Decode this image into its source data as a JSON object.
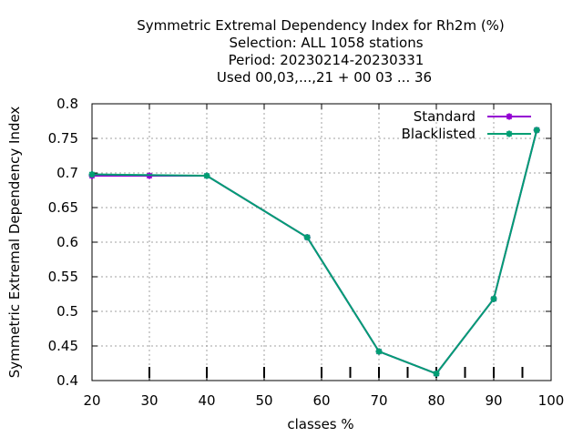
{
  "chart_data": {
    "type": "line",
    "title_lines": [
      "Symmetric Extremal Dependency Index  for Rh2m (%)",
      "Selection: ALL   1058 stations",
      "Period: 20230214-20230331",
      "Used  00,03,...,21  + 00 03 ... 36"
    ],
    "xlabel": "classes %",
    "ylabel": "Symmetric Extremal Dependency Index",
    "xlim": [
      20,
      100
    ],
    "ylim": [
      0.4,
      0.8
    ],
    "x_ticks": [
      20,
      30,
      40,
      50,
      60,
      70,
      80,
      90,
      100
    ],
    "y_ticks": [
      0.4,
      0.45,
      0.5,
      0.55,
      0.6,
      0.65,
      0.7,
      0.75,
      0.8
    ],
    "x_tick_labels": [
      "20",
      "30",
      "40",
      "50",
      "60",
      "70",
      "80",
      "90",
      "100"
    ],
    "y_tick_labels": [
      "0.4",
      "0.45",
      "0.5",
      "0.55",
      "0.6",
      "0.65",
      "0.7",
      "0.75",
      "0.8"
    ],
    "grid": true,
    "legend_position": "top-right",
    "class_markers": [
      30,
      40,
      50,
      60,
      65,
      70,
      75,
      80,
      85,
      90,
      95
    ],
    "series": [
      {
        "name": "Standard",
        "color": "#9400d3",
        "x": [
          20,
          30,
          40,
          57.5,
          70,
          80,
          90,
          97.5
        ],
        "y": [
          0.696,
          0.696,
          0.696,
          0.607,
          0.442,
          0.41,
          0.518,
          0.762
        ]
      },
      {
        "name": "Blacklisted",
        "color": "#009e73",
        "x": [
          20,
          40,
          57.5,
          70,
          80,
          90,
          97.5
        ],
        "y": [
          0.698,
          0.696,
          0.607,
          0.442,
          0.41,
          0.518,
          0.762
        ]
      }
    ]
  }
}
